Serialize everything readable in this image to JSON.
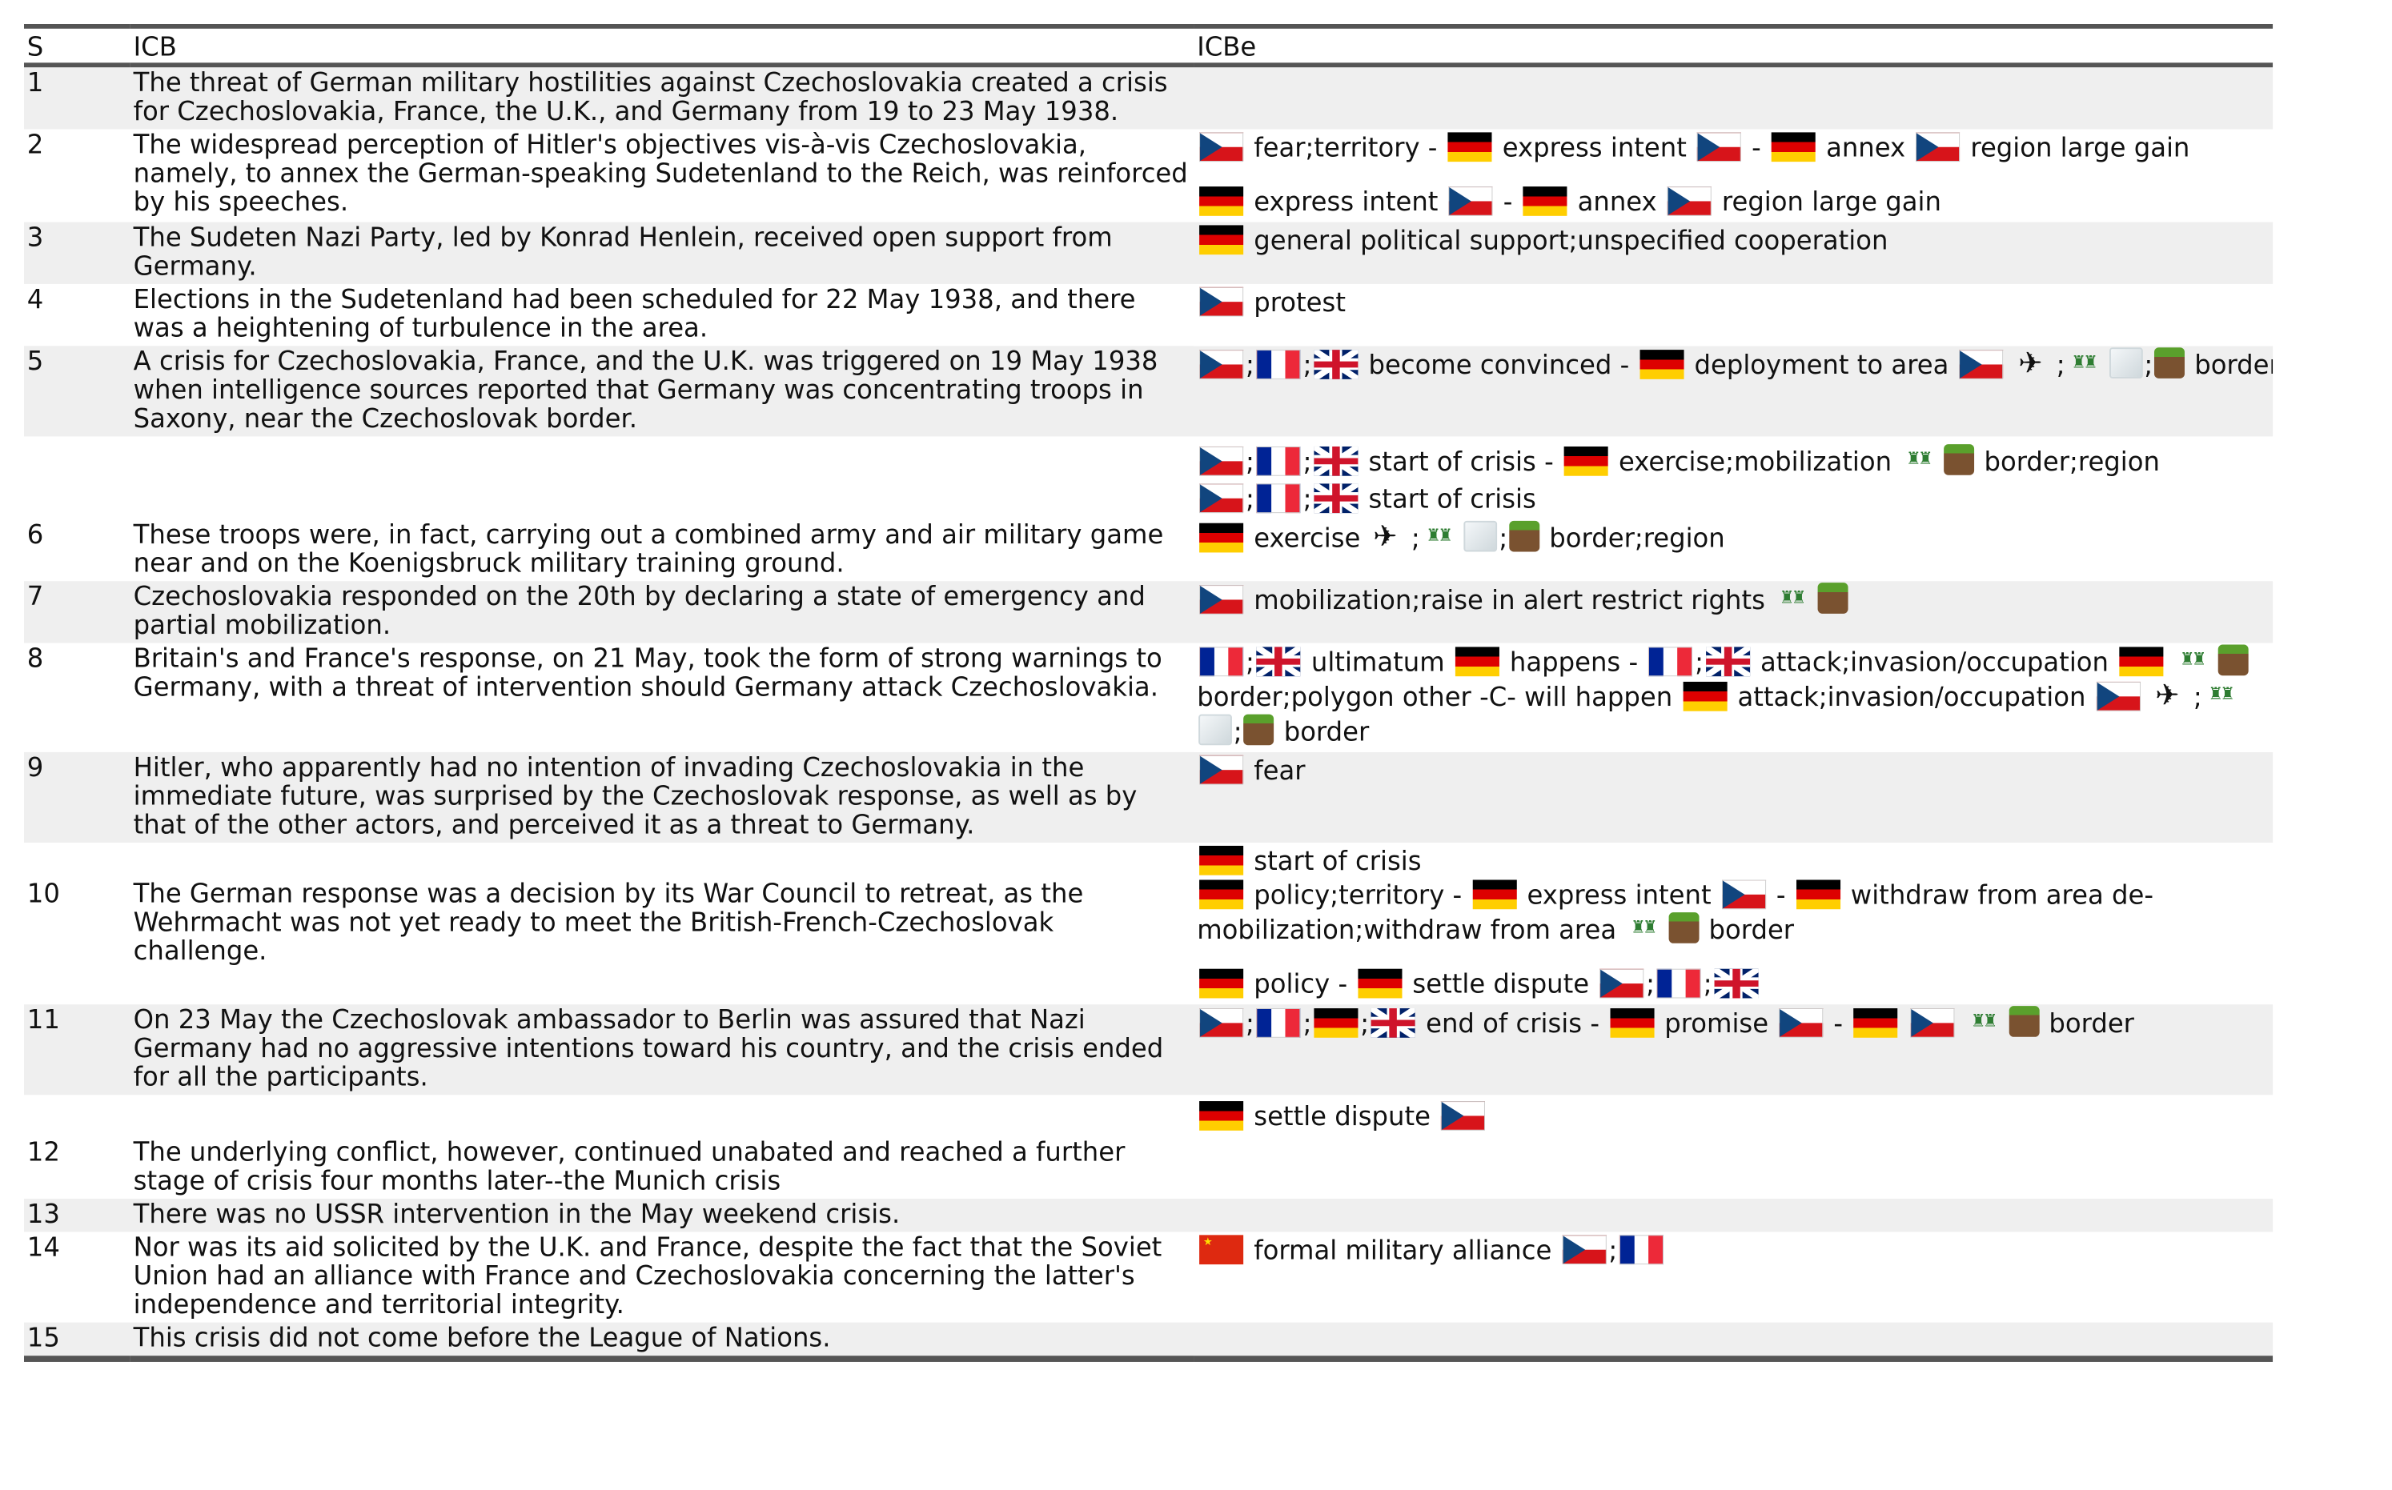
{
  "headers": {
    "s": "S",
    "icb": "ICB",
    "icbe": "ICBe"
  },
  "rows": [
    {
      "s": "1",
      "icb": "The threat of German military hostilities against Czechoslovakia created a crisis for Czechoslovakia, France, the U.K., and Germany from 19 to 23 May 1938.",
      "events": []
    },
    {
      "s": "2",
      "icb": "The widespread perception of Hitler's objectives vis-à-vis Czechoslovakia, namely, to annex the German-speaking Sudetenland to the Reich, was reinforced by his speeches.",
      "events": [
        {
          "text": [
            "fear;territory -",
            "express intent",
            "-",
            "annex",
            "region large gain"
          ]
        },
        {
          "text": [
            "express intent",
            "-",
            "annex",
            "region large gain"
          ]
        }
      ]
    },
    {
      "s": "3",
      "icb": "The Sudeten Nazi Party, led by Konrad Henlein, received open support from Germany.",
      "events": [
        {
          "text": [
            "general political support;unspecified cooperation"
          ]
        }
      ]
    },
    {
      "s": "4",
      "icb": "Elections in the Sudetenland had been scheduled for 22 May 1938, and there was a heightening of turbulence in the area.",
      "events": [
        {
          "text": [
            "protest"
          ]
        }
      ]
    },
    {
      "s": "5",
      "icb": "A crisis for Czechoslovakia, France, and the U.K. was triggered on 19 May 1938 when intelligence sources reported that Germany was concentrating troops in Saxony, near the Czechoslovak border.",
      "events": [
        {
          "text": [
            "become convinced -",
            "deployment to area",
            "border;region"
          ]
        }
      ]
    },
    {
      "s": "",
      "icb": "",
      "events": [
        {
          "text": [
            "start of crisis -",
            "exercise;mobilization",
            "border;region"
          ]
        },
        {
          "text": [
            "start of crisis"
          ]
        }
      ]
    },
    {
      "s": "6",
      "icb": "These troops were, in fact, carrying out a combined army and air military game near and on the Koenigsbruck military training ground.",
      "events": [
        {
          "text": [
            "exercise",
            "border;region"
          ]
        }
      ]
    },
    {
      "s": "7",
      "icb": "Czechoslovakia responded on the 20th by declaring a state of emergency and partial mobilization.",
      "events": [
        {
          "text": [
            "mobilization;raise in alert restrict rights"
          ]
        }
      ]
    },
    {
      "s": "8",
      "icb": "Britain's and France's response, on 21 May, took the form of strong warnings to Germany, with a threat of intervention should Germany attack Czechoslovakia.",
      "events": [
        {
          "text": [
            "ultimatum",
            "happens -",
            "attack;invasion/occupation",
            "border;polygon other -C- will happen",
            "attack;invasion/occupation",
            "border"
          ]
        }
      ]
    },
    {
      "s": "9",
      "icb": "Hitler, who apparently had no intention of invading Czechoslovakia in the immediate future, was surprised by the Czechoslovak response, as well as by that of the other actors, and perceived it as a threat to Germany.",
      "events": [
        {
          "text": [
            "fear"
          ]
        }
      ]
    },
    {
      "s": "10",
      "icb": "The German response was a decision by its War Council to retreat, as the Wehrmacht was not yet ready to meet the British-French-Czechoslovak challenge.",
      "events": [
        {
          "text": [
            "start of crisis"
          ]
        },
        {
          "text": [
            "policy;territory -",
            "express intent",
            "-",
            "withdraw from area de-mobilization;withdraw from area",
            "border"
          ]
        },
        {
          "text": [
            "policy -",
            "settle dispute"
          ]
        }
      ]
    },
    {
      "s": "11",
      "icb": "On 23 May the Czechoslovak ambassador to Berlin was assured that Nazi Germany had no aggressive intentions toward his country, and the crisis ended for all the participants.",
      "events": [
        {
          "text": [
            "end of crisis -",
            "promise",
            "-",
            "border"
          ]
        }
      ]
    },
    {
      "s": "",
      "icb": "",
      "events": [
        {
          "text": [
            "settle dispute"
          ]
        }
      ]
    },
    {
      "s": "12",
      "icb": "The underlying conflict, however, continued unabated and reached a further stage of crisis four months later--the Munich crisis",
      "events": []
    },
    {
      "s": "13",
      "icb": "There was no USSR intervention in the May weekend crisis.",
      "events": []
    },
    {
      "s": "14",
      "icb": "Nor was its aid solicited by the U.K. and France, despite the fact that the Soviet Union had an alliance with France and Czechoslovakia concerning the latter's independence and territorial integrity.",
      "events": [
        {
          "text": [
            "formal military alliance"
          ]
        }
      ]
    },
    {
      "s": "15",
      "icb": "This crisis did not come before the League of Nations.",
      "events": []
    }
  ]
}
